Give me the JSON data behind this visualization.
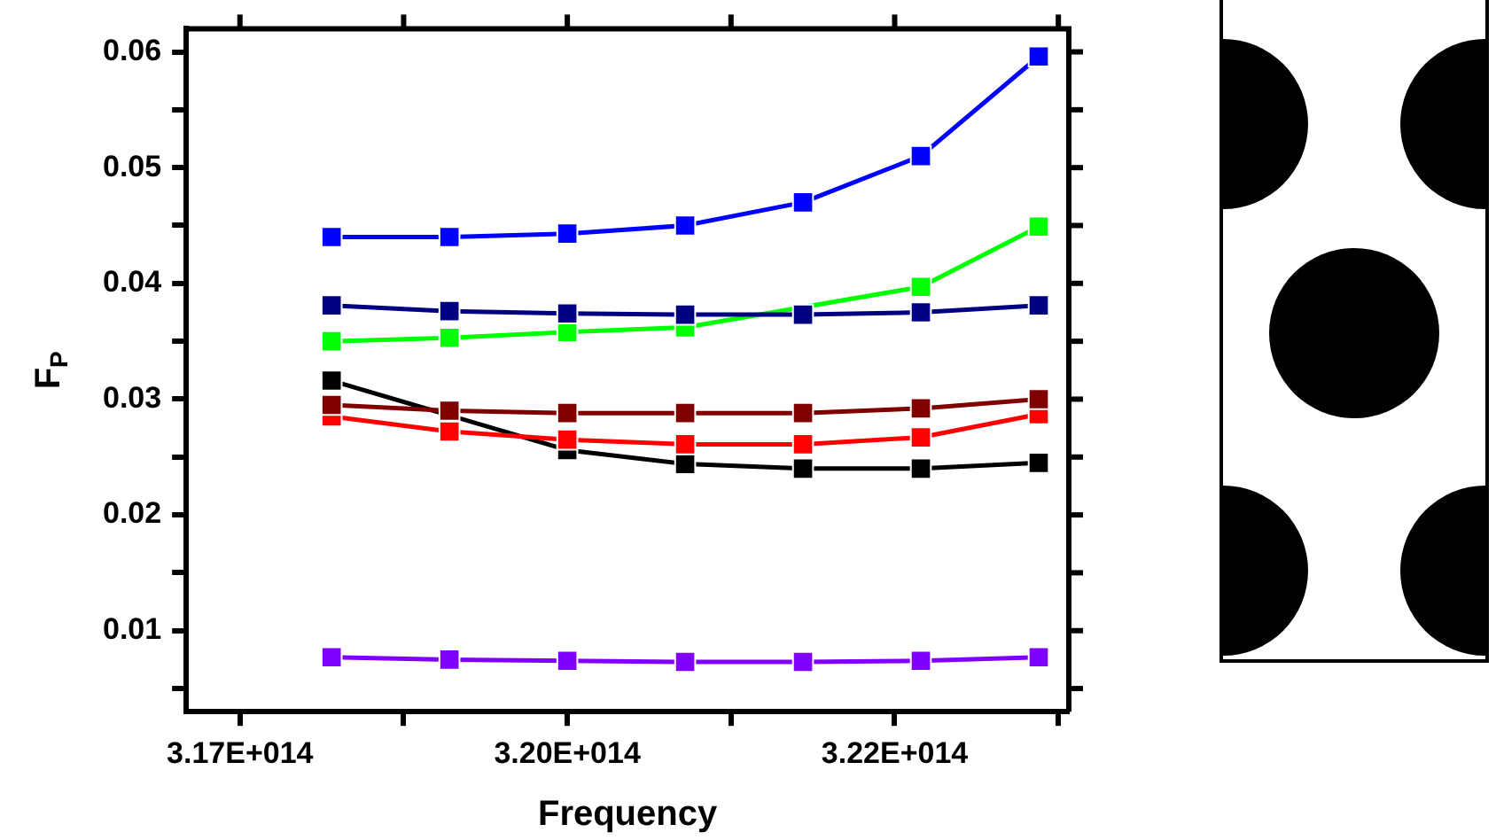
{
  "chart_data": {
    "type": "line",
    "xlabel": "Frequency",
    "ylabel": "F$_{P}$",
    "x": [
      318200000000000.0,
      319100000000000.0,
      320000000000000.0,
      320900000000000.0,
      321800000000000.0,
      322700000000000.0,
      323600000000000.0
    ],
    "series": [
      {
        "color": "#0000ff",
        "values": [
          0.044,
          0.044,
          0.0443,
          0.045,
          0.047,
          0.051,
          0.0596
        ]
      },
      {
        "color": "#000080",
        "values": [
          0.0381,
          0.0376,
          0.0374,
          0.0373,
          0.0373,
          0.0375,
          0.0381
        ]
      },
      {
        "color": "#00ff00",
        "values": [
          0.035,
          0.0353,
          0.0358,
          0.0362,
          null,
          0.0397,
          0.0449
        ]
      },
      {
        "color": "#800000",
        "values": [
          0.0295,
          0.029,
          0.0288,
          0.0288,
          0.0288,
          0.0292,
          0.03
        ]
      },
      {
        "color": "#ff0000",
        "values": [
          0.0285,
          0.0272,
          0.0265,
          0.0261,
          0.0261,
          0.0267,
          0.0287
        ]
      },
      {
        "color": "#000000",
        "values": [
          0.0316,
          null,
          0.0256,
          0.0244,
          0.024,
          0.024,
          0.0245
        ]
      },
      {
        "color": "#8000ff",
        "values": [
          0.0077,
          0.0075,
          0.0074,
          0.0073,
          0.0073,
          0.0074,
          0.0077
        ]
      }
    ],
    "xlim": [
      317090000000000.0,
      323830000000000.0
    ],
    "xticks": [
      {
        "value": 317500000000000.0,
        "label": "3.17E+014"
      },
      {
        "value": 318750000000000.0,
        "label": null
      },
      {
        "value": 320000000000000.0,
        "label": "3.20E+014"
      },
      {
        "value": 321250000000000.0,
        "label": null
      },
      {
        "value": 322500000000000.0,
        "label": "3.22E+014"
      },
      {
        "value": 323750000000000.0,
        "label": null
      }
    ],
    "ylim": [
      0.003,
      0.062
    ],
    "yticks": [
      {
        "value": 0.005,
        "label": null
      },
      0.01,
      {
        "value": 0.015,
        "label": null
      },
      0.02,
      {
        "value": 0.025,
        "label": null
      },
      0.03,
      {
        "value": 0.035,
        "label": null
      },
      0.04,
      {
        "value": 0.045,
        "label": null
      },
      0.05,
      {
        "value": 0.055,
        "label": null
      },
      0.06
    ],
    "marker": "square",
    "line_style": "solid",
    "grid": false,
    "legend": false
  }
}
